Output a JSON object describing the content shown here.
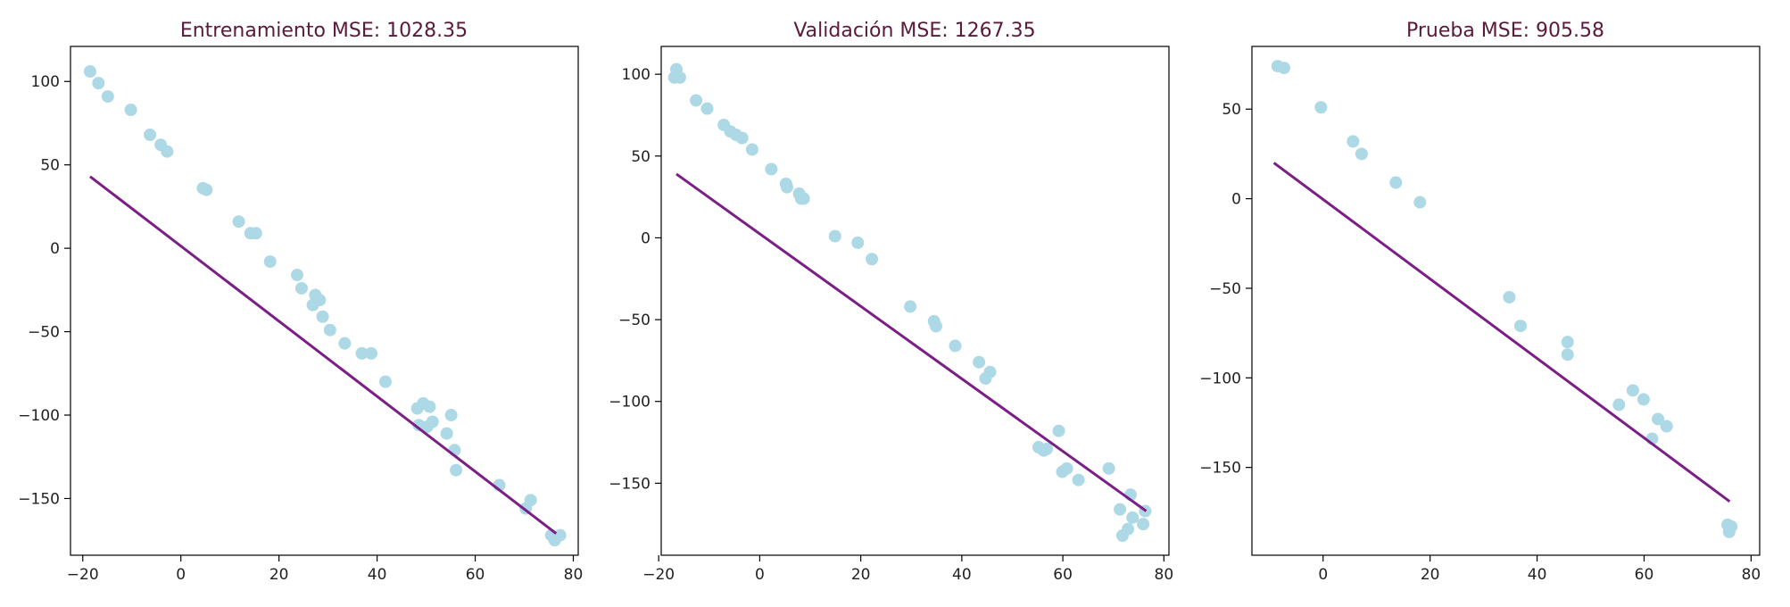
{
  "colors": {
    "points": "#add8e6",
    "line": "#7b1f86",
    "title": "#5a1a3a",
    "axis": "#000000",
    "background": "#ffffff"
  },
  "chart_data": [
    {
      "type": "scatter",
      "title": "Entrenamiento MSE: 1028.35",
      "xlabel": "",
      "ylabel": "",
      "xlim": [
        -22.5,
        81
      ],
      "ylim": [
        -184,
        121
      ],
      "xticks": [
        -20,
        0,
        20,
        40,
        60,
        80
      ],
      "yticks": [
        100,
        50,
        0,
        -50,
        -100,
        -150
      ],
      "grid": false,
      "series": [
        {
          "kind": "points",
          "x": [
            -18.5,
            -16.8,
            -14.9,
            -10.2,
            -6.3,
            -4.1,
            -2.8,
            4.5,
            5.2,
            11.8,
            14.2,
            15.3,
            18.2,
            23.7,
            24.6,
            26.9,
            27.4,
            28.3,
            28.9,
            30.4,
            33.4,
            36.9,
            38.8,
            41.7,
            48.2,
            48.5,
            49.4,
            50.2,
            50.7,
            51.3,
            54.2,
            55.1,
            55.8,
            56.1,
            64.9,
            70.3,
            71.3,
            75.5,
            76.2,
            77.3
          ],
          "y": [
            106,
            99,
            91,
            83,
            68,
            62,
            58,
            36,
            35,
            16,
            9,
            9,
            -8,
            -16,
            -24,
            -34,
            -28,
            -31,
            -41,
            -49,
            -57,
            -63,
            -63,
            -80,
            -96,
            -106,
            -93,
            -107,
            -95,
            -104,
            -111,
            -100,
            -121,
            -133,
            -142,
            -156,
            -151,
            -172,
            -175,
            -172
          ]
        },
        {
          "kind": "line",
          "x": [
            -18.5,
            76.5
          ],
          "y": [
            43,
            -171
          ]
        }
      ]
    },
    {
      "type": "scatter",
      "title": "Validación MSE: 1267.35",
      "xlabel": "",
      "ylabel": "",
      "xlim": [
        -19.5,
        81
      ],
      "ylim": [
        -194,
        117
      ],
      "xticks": [
        -20,
        0,
        20,
        40,
        60,
        80
      ],
      "yticks": [
        100,
        50,
        0,
        -50,
        -100,
        -150
      ],
      "grid": false,
      "series": [
        {
          "kind": "points",
          "x": [
            -16.9,
            -16.5,
            -15.8,
            -12.6,
            -10.4,
            -7.1,
            -5.8,
            -4.7,
            -3.5,
            -1.5,
            2.3,
            5.2,
            5.4,
            7.8,
            8.2,
            8.7,
            14.9,
            19.4,
            22.2,
            29.8,
            34.5,
            34.9,
            38.7,
            43.4,
            44.7,
            45.6,
            55.2,
            56.2,
            56.8,
            59.2,
            59.9,
            60.8,
            63.1,
            69.1,
            71.3,
            71.8,
            72.9,
            73.4,
            73.8,
            75.9,
            76.3
          ],
          "y": [
            98,
            103,
            98,
            84,
            79,
            69,
            65,
            63,
            61,
            54,
            42,
            33,
            31,
            27,
            24,
            24,
            1,
            -3,
            -13,
            -42,
            -51,
            -54,
            -66,
            -76,
            -86,
            -82,
            -128,
            -130,
            -129,
            -118,
            -143,
            -141,
            -148,
            -141,
            -166,
            -182,
            -178,
            -157,
            -171,
            -175,
            -167
          ]
        },
        {
          "kind": "line",
          "x": [
            -16.5,
            76.5
          ],
          "y": [
            39,
            -167
          ]
        }
      ]
    },
    {
      "type": "scatter",
      "title": "Prueba MSE: 905.58",
      "xlabel": "",
      "ylabel": "",
      "xlim": [
        -13.3,
        81.6
      ],
      "ylim": [
        -199,
        85
      ],
      "xticks": [
        0,
        20,
        40,
        60,
        80
      ],
      "yticks": [
        50,
        0,
        -50,
        -100,
        -150
      ],
      "grid": false,
      "series": [
        {
          "kind": "points",
          "x": [
            -8.5,
            -7.3,
            -0.4,
            5.6,
            7.2,
            13.6,
            18.1,
            34.8,
            36.9,
            45.7,
            45.7,
            55.3,
            57.9,
            59.9,
            61.5,
            62.6,
            64.2,
            75.6,
            75.9,
            76.3
          ],
          "y": [
            74,
            73,
            51,
            32,
            25,
            9,
            -2,
            -55,
            -71,
            -80,
            -87,
            -115,
            -107,
            -112,
            -134,
            -123,
            -127,
            -182,
            -186,
            -183
          ]
        },
        {
          "kind": "line",
          "x": [
            -9.2,
            76
          ],
          "y": [
            20,
            -169
          ]
        }
      ]
    }
  ]
}
